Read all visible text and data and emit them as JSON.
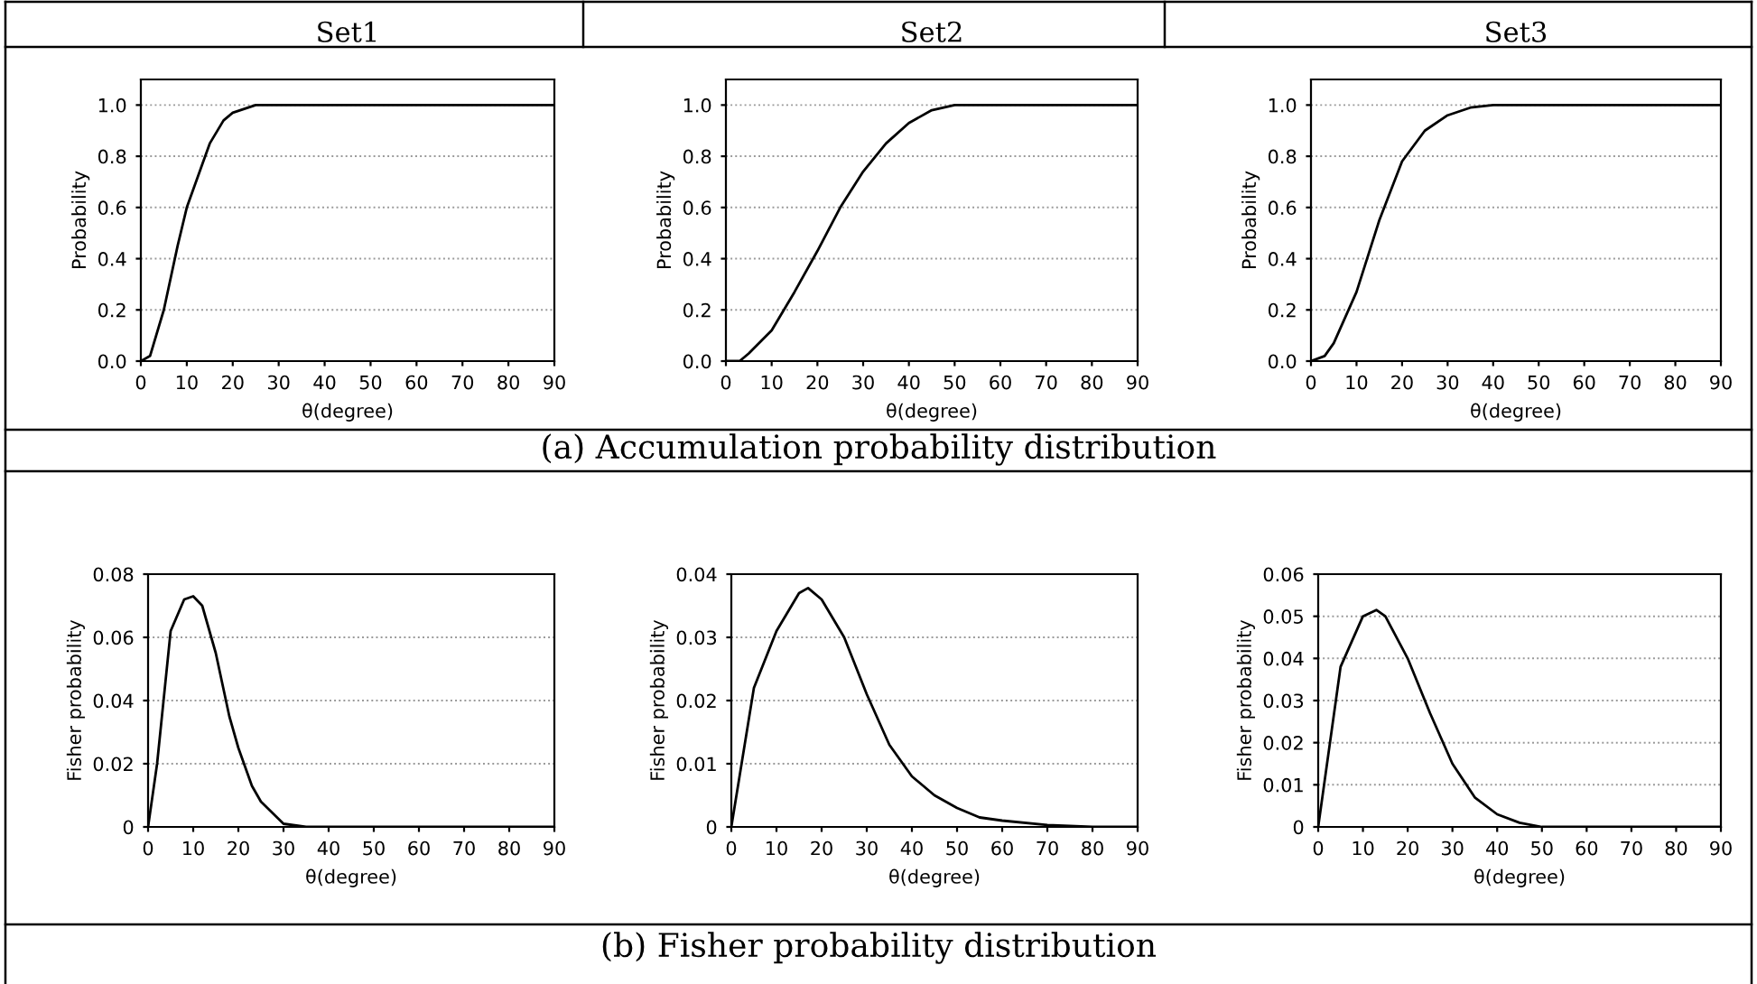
{
  "chart_data": [
    {
      "type": "line",
      "title": "Set1",
      "xlabel": "θ(degree)",
      "ylabel": "Probability",
      "xlim": [
        0,
        90
      ],
      "ylim": [
        0,
        1.1
      ],
      "xticks": [
        0,
        10,
        20,
        30,
        40,
        50,
        60,
        70,
        80,
        90
      ],
      "yticks": [
        {
          "value": 0,
          "label": "0.0"
        },
        {
          "value": 0.2,
          "label": "0.2"
        },
        {
          "value": 0.4,
          "label": "0.4"
        },
        {
          "value": 0.6,
          "label": "0.6"
        },
        {
          "value": 0.8,
          "label": "0.8"
        },
        {
          "value": 1,
          "label": "1.0"
        }
      ],
      "grid": "y",
      "marker": "none",
      "line_style": "solid",
      "series": [
        {
          "color": "#000000",
          "x": [
            0,
            2,
            5,
            8,
            10,
            13,
            15,
            18,
            20,
            25,
            30,
            40,
            50,
            60,
            70,
            80,
            90
          ],
          "values": [
            0,
            0.02,
            0.2,
            0.45,
            0.6,
            0.75,
            0.85,
            0.94,
            0.97,
            1.0,
            1.0,
            1.0,
            1.0,
            1.0,
            1.0,
            1.0,
            1.0
          ]
        }
      ]
    },
    {
      "type": "line",
      "title": "Set2",
      "xlabel": "θ(degree)",
      "ylabel": "Probability",
      "xlim": [
        0,
        90
      ],
      "ylim": [
        0,
        1.1
      ],
      "xticks": [
        0,
        10,
        20,
        30,
        40,
        50,
        60,
        70,
        80,
        90
      ],
      "yticks": [
        {
          "value": 0,
          "label": "0.0"
        },
        {
          "value": 0.2,
          "label": "0.2"
        },
        {
          "value": 0.4,
          "label": "0.4"
        },
        {
          "value": 0.6,
          "label": "0.6"
        },
        {
          "value": 0.8,
          "label": "0.8"
        },
        {
          "value": 1,
          "label": "1.0"
        }
      ],
      "grid": "y",
      "marker": "none",
      "line_style": "solid",
      "annotations": [
        "(a) Accumulation probability distribution"
      ],
      "series": [
        {
          "color": "#000000",
          "x": [
            0,
            3,
            5,
            10,
            15,
            20,
            25,
            30,
            35,
            40,
            45,
            50,
            60,
            70,
            80,
            90
          ],
          "values": [
            0,
            0,
            0.03,
            0.12,
            0.27,
            0.43,
            0.6,
            0.74,
            0.85,
            0.93,
            0.98,
            1.0,
            1.0,
            1.0,
            1.0,
            1.0
          ]
        }
      ]
    },
    {
      "type": "line",
      "title": "Set3",
      "xlabel": "θ(degree)",
      "ylabel": "Probability",
      "xlim": [
        0,
        90
      ],
      "ylim": [
        0,
        1.1
      ],
      "xticks": [
        0,
        10,
        20,
        30,
        40,
        50,
        60,
        70,
        80,
        90
      ],
      "yticks": [
        {
          "value": 0,
          "label": "0.0"
        },
        {
          "value": 0.2,
          "label": "0.2"
        },
        {
          "value": 0.4,
          "label": "0.4"
        },
        {
          "value": 0.6,
          "label": "0.6"
        },
        {
          "value": 0.8,
          "label": "0.8"
        },
        {
          "value": 1,
          "label": "1.0"
        }
      ],
      "grid": "y",
      "marker": "none",
      "line_style": "solid",
      "series": [
        {
          "color": "#000000",
          "x": [
            0,
            3,
            5,
            10,
            15,
            20,
            25,
            30,
            35,
            40,
            50,
            60,
            70,
            80,
            90
          ],
          "values": [
            0,
            0.02,
            0.07,
            0.27,
            0.55,
            0.78,
            0.9,
            0.96,
            0.99,
            1.0,
            1.0,
            1.0,
            1.0,
            1.0,
            1.0
          ]
        }
      ]
    },
    {
      "type": "line",
      "xlabel": "θ(degree)",
      "ylabel": "Fisher probability",
      "xlim": [
        0,
        90
      ],
      "ylim": [
        0,
        0.08
      ],
      "xticks": [
        0,
        10,
        20,
        30,
        40,
        50,
        60,
        70,
        80,
        90
      ],
      "yticks": [
        0,
        0.02,
        0.04,
        0.06,
        0.08
      ],
      "grid": "y",
      "marker": "none",
      "line_style": "solid",
      "series": [
        {
          "color": "#000000",
          "x": [
            0,
            2,
            5,
            8,
            10,
            12,
            15,
            18,
            20,
            23,
            25,
            30,
            35,
            40,
            50,
            60,
            70,
            80,
            90
          ],
          "values": [
            0,
            0.02,
            0.062,
            0.072,
            0.073,
            0.07,
            0.055,
            0.035,
            0.025,
            0.013,
            0.008,
            0.001,
            0,
            0,
            0,
            0,
            0,
            0,
            0
          ]
        }
      ]
    },
    {
      "type": "line",
      "xlabel": "θ(degree)",
      "ylabel": "Fisher probability",
      "xlim": [
        0,
        90
      ],
      "ylim": [
        0,
        0.04
      ],
      "xticks": [
        0,
        10,
        20,
        30,
        40,
        50,
        60,
        70,
        80,
        90
      ],
      "yticks": [
        0,
        0.01,
        0.02,
        0.03,
        0.04
      ],
      "grid": "y",
      "marker": "none",
      "line_style": "solid",
      "annotations": [
        "(b) Fisher probability distribution"
      ],
      "series": [
        {
          "color": "#000000",
          "x": [
            0,
            5,
            10,
            15,
            17,
            20,
            25,
            30,
            35,
            40,
            45,
            50,
            55,
            60,
            70,
            80,
            90
          ],
          "values": [
            0,
            0.022,
            0.031,
            0.037,
            0.0378,
            0.036,
            0.03,
            0.021,
            0.013,
            0.008,
            0.005,
            0.003,
            0.0015,
            0.001,
            0.0003,
            0,
            0
          ]
        }
      ]
    },
    {
      "type": "line",
      "xlabel": "θ(degree)",
      "ylabel": "Fisher probability",
      "xlim": [
        0,
        90
      ],
      "ylim": [
        0,
        0.06
      ],
      "xticks": [
        0,
        10,
        20,
        30,
        40,
        50,
        60,
        70,
        80,
        90
      ],
      "yticks": [
        0,
        0.01,
        0.02,
        0.03,
        0.04,
        0.05,
        0.06
      ],
      "grid": "y",
      "marker": "none",
      "line_style": "solid",
      "series": [
        {
          "color": "#000000",
          "x": [
            0,
            5,
            10,
            13,
            15,
            20,
            25,
            30,
            35,
            40,
            45,
            50,
            60,
            70,
            80,
            90
          ],
          "values": [
            0,
            0.038,
            0.05,
            0.0515,
            0.05,
            0.04,
            0.027,
            0.015,
            0.007,
            0.003,
            0.001,
            0,
            0,
            0,
            0,
            0
          ]
        }
      ]
    }
  ]
}
